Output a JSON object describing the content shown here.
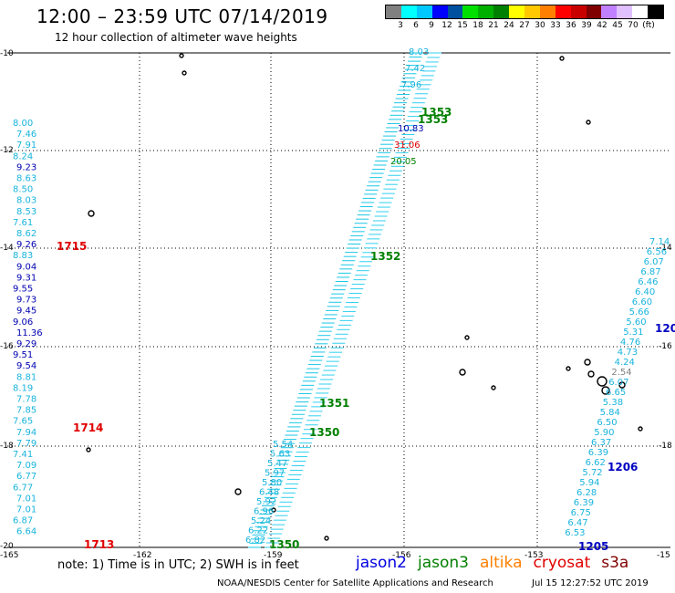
{
  "header": {
    "title": "12:00 – 23:59 UTC 07/14/2019",
    "subtitle": "12 hour collection of altimeter wave heights"
  },
  "colorbar": {
    "colors": [
      "#808080",
      "#00ffff",
      "#00c8ff",
      "#0000ff",
      "#0050a0",
      "#00e000",
      "#00b000",
      "#008000",
      "#ffff00",
      "#ffc800",
      "#ff8000",
      "#ff0000",
      "#c80000",
      "#800000",
      "#c080ff",
      "#e0c0ff",
      "#ffffff",
      "#000000"
    ],
    "labels": [
      "3",
      "6",
      "9",
      "12",
      "15",
      "18",
      "21",
      "24",
      "27",
      "30",
      "33",
      "36",
      "39",
      "42",
      "45",
      "70",
      "(ft)"
    ]
  },
  "map": {
    "lon_labels": [
      "-165",
      "-162",
      "-159",
      "-156",
      "-153",
      "-15"
    ],
    "lat_labels": [
      "-10",
      "-12",
      "-14",
      "-16",
      "-18",
      "-20"
    ],
    "right_lat_labels": [
      "-14",
      "-16",
      "-18"
    ],
    "track_labels": [
      "1353",
      "1353",
      "1352",
      "1351",
      "1350",
      "1350",
      "1715",
      "1714",
      "1713",
      "1206",
      "1205",
      "120"
    ],
    "left_track_values": [
      "8.00",
      "7.46",
      "7.91",
      "8.24",
      "9.23",
      "8.63",
      "8.50",
      "8.03",
      "8.53",
      "7.61",
      "8.62",
      "9.26",
      "8.83",
      "9.04",
      "9.31",
      "9.55",
      "9.73",
      "9.45",
      "9.06",
      "11.36",
      "9.29",
      "9.51",
      "9.54",
      "8.81",
      "8.19",
      "7.78",
      "7.85",
      "7.65",
      "7.94",
      "7.79",
      "7.41",
      "7.09",
      "6.77",
      "6.77",
      "7.01",
      "7.01",
      "6.87",
      "6.64"
    ],
    "center_lower_values": [
      "5.54",
      "5.63",
      "5.47",
      "5.97",
      "5.80",
      "6.48",
      "5.92",
      "6.96",
      "5.24",
      "6.22",
      "6.82"
    ],
    "center_upper_values": [
      "8.03",
      "7.42",
      "7.96",
      "10.83",
      "31.06",
      "20.05"
    ],
    "right_track_values": [
      "7.14",
      "6.56",
      "6.07",
      "6.87",
      "6.46",
      "6.40",
      "6.60",
      "5.66",
      "5.60",
      "5.31",
      "4.76",
      "4.73",
      "4.24",
      "2.54",
      "6.07",
      "6.65",
      "5.38",
      "5.84",
      "6.50",
      "5.90",
      "6.37",
      "6.39",
      "6.62",
      "5.72",
      "5.94",
      "6.28",
      "6.39",
      "6.75",
      "6.47",
      "6.53"
    ]
  },
  "footer": {
    "note": "note: 1) Time is in UTC; 2) SWH is in feet",
    "legend": [
      {
        "name": "jason2",
        "color": "#0000e0"
      },
      {
        "name": "jason3",
        "color": "#008000"
      },
      {
        "name": "altika",
        "color": "#ff8000"
      },
      {
        "name": "cryosat",
        "color": "#e00000"
      },
      {
        "name": "s3a",
        "color": "#800000"
      }
    ],
    "credit": "NOAA/NESDIS Center for Satellite Applications and Research",
    "timestamp": "Jul 15 12:27:52 UTC 2019"
  }
}
